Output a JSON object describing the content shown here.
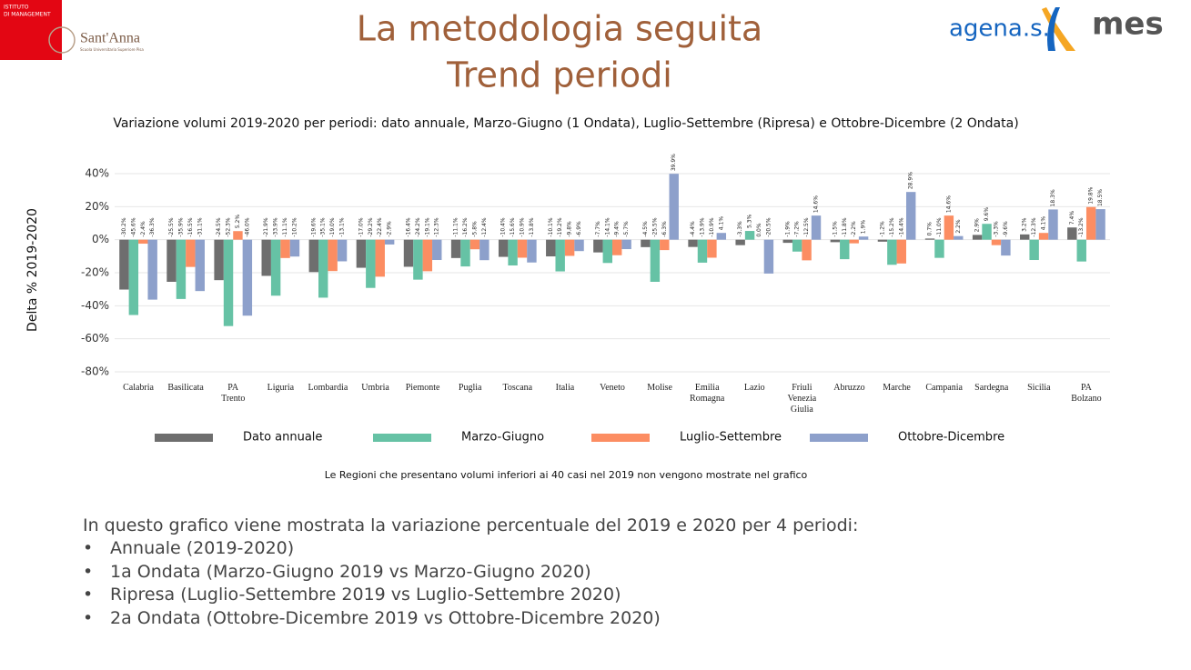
{
  "slide": {
    "title": [
      "La metodologia seguita",
      "Trend periodi"
    ],
    "logo_left": [
      "ISTITUTO",
      "DI MANAGEMENT"
    ],
    "logo_santanna": "Sant'Anna",
    "logo_santanna_sub": "Scuola Universitaria Superiore Pisa",
    "logo_agenas": "agena.s.",
    "logo_mes": "mes",
    "note": "Le Regioni che presentano volumi inferiori ai 40 casi nel 2019 non vengono mostrate nel grafico",
    "intro": "In questo grafico viene mostrata la variazione percentuale del 2019 e 2020 per 4 periodi:",
    "bullets": [
      "Annuale (2019-2020)",
      "1a Ondata (Marzo-Giugno 2019 vs Marzo-Giugno 2020)",
      "Ripresa (Luglio-Settembre 2019 vs Luglio-Settembre 2020)",
      "2a Ondata (Ottobre-Dicembre 2019 vs Ottobre-Dicembre 2020)"
    ]
  },
  "chart_data": {
    "type": "bar",
    "title": "Variazione volumi 2019-2020 per periodi: dato annuale, Marzo-Giugno (1 Ondata), Luglio-Settembre (Ripresa) e Ottobre-Dicembre (2 Ondata)",
    "y_label": "Delta % 2019-2020",
    "categories": [
      "Calabria",
      "Basilicata",
      "PA Trento",
      "Liguria",
      "Lombardia",
      "Umbria",
      "Piemonte",
      "Puglia",
      "Toscana",
      "Italia",
      "Veneto",
      "Molise",
      "Emilia Romagna",
      "Lazio",
      "Friuli Venezia Giulia",
      "Abruzzo",
      "Marche",
      "Campania",
      "Sardegna",
      "Sicilia",
      "PA Bolzano"
    ],
    "series": [
      {
        "name": "Dato annuale",
        "color": "#6e6e6e",
        "values": [
          -30.2,
          -25.5,
          -24.5,
          -21.9,
          -19.6,
          -17.0,
          -16.4,
          -11.1,
          -10.4,
          -10.1,
          -7.7,
          -4.5,
          -4.4,
          -3.3,
          -1.9,
          -1.5,
          -1.2,
          0.7,
          2.9,
          3.2,
          7.4
        ],
        "value_labels": [
          "-30.2%",
          "-25.5%",
          "-24.5%",
          "-21.9%",
          "-19.6%",
          "-17.0%",
          "-16.4%",
          "-11.1%",
          "-10.4%",
          "-10.1%",
          "-7.7%",
          "-4.5%",
          "-4.4%",
          "-3.3%",
          "-1.9%",
          "-1.5%",
          "-1.2%",
          "0.7%",
          "2.9%",
          "3.2%",
          "7.4%"
        ]
      },
      {
        "name": "Marzo-Giugno",
        "color": "#66c2a5",
        "values": [
          -45.6,
          -35.9,
          -52.3,
          -33.9,
          -35.1,
          -29.2,
          -24.2,
          -16.2,
          -15.6,
          -19.2,
          -14.1,
          -25.5,
          -13.9,
          5.3,
          -7.2,
          -11.8,
          -15.2,
          -11.0,
          9.6,
          -12.3,
          -13.2
        ],
        "value_labels": [
          "-45.6%",
          "-35.9%",
          "-52.3%",
          "-33.9%",
          "-35.1%",
          "-29.2%",
          "-24.2%",
          "-16.2%",
          "-15.6%",
          "-19.2%",
          "-14.1%",
          "-25.5%",
          "-13.9%",
          "5.3%",
          "-7.2%",
          "-11.8%",
          "-15.2%",
          "-11.0%",
          "9.6%",
          "-12.3%",
          "-13.2%"
        ]
      },
      {
        "name": "Luglio-Settembre",
        "color": "#fc8d62",
        "values": [
          -2.4,
          -16.5,
          5.2,
          -11.1,
          -19.0,
          -22.4,
          -19.1,
          -5.8,
          -10.9,
          -9.8,
          -9.4,
          -6.3,
          -10.9,
          0.0,
          -12.5,
          -2.2,
          -14.4,
          14.6,
          -3.3,
          4.1,
          19.8
        ],
        "value_labels": [
          "-2.4%",
          "-16.5%",
          "5.2%",
          "-11.1%",
          "-19.0%",
          "-22.4%",
          "-19.1%",
          "-5.8%",
          "-10.9%",
          "-9.8%",
          "-9.4%",
          "-6.3%",
          "-10.9%",
          "0.0%",
          "-12.5%",
          "-2.2%",
          "-14.4%",
          "14.6%",
          "-3.3%",
          "4.1%",
          "19.8%"
        ]
      },
      {
        "name": "Ottobre-Dicembre",
        "color": "#8da0cb",
        "values": [
          -36.3,
          -31.1,
          -46.0,
          -10.2,
          -13.1,
          -2.9,
          -12.3,
          -12.4,
          -13.8,
          -6.9,
          -5.7,
          39.9,
          4.1,
          -20.5,
          14.6,
          1.9,
          28.9,
          2.2,
          -9.6,
          18.3,
          18.5
        ],
        "value_labels": [
          "-36.3%",
          "-31.1%",
          "-46.0%",
          "-10.2%",
          "-13.1%",
          "-2.9%",
          "-12.3%",
          "-12.4%",
          "-13.8%",
          "-6.9%",
          "-5.7%",
          "39.9%",
          "4.1%",
          "-20.5%",
          "14.6%",
          "1.9%",
          "28.9%",
          "2.2%",
          "-9.6%",
          "18.3%",
          "18.5%"
        ]
      }
    ],
    "ylim": [
      -80,
      40
    ],
    "yticks": [
      {
        "value": -80,
        "label": "-80%"
      },
      {
        "value": -60,
        "label": "-60%"
      },
      {
        "value": -40,
        "label": "-40%"
      },
      {
        "value": -20,
        "label": "-20%"
      },
      {
        "value": 0,
        "label": "0%"
      },
      {
        "value": 20,
        "label": "20%"
      },
      {
        "value": 40,
        "label": "40%"
      }
    ],
    "grid": true,
    "legend": "bottom"
  }
}
